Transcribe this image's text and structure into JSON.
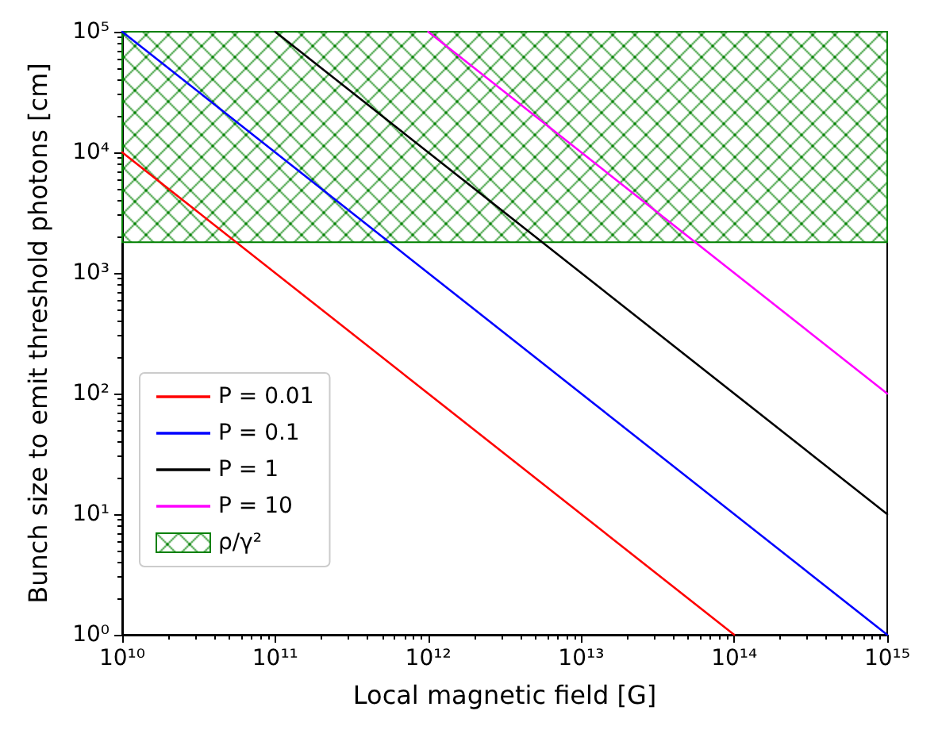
{
  "chart_data": {
    "type": "line",
    "xlabel": "Local magnetic field [G]",
    "ylabel": "Bunch size to emit threshold photons [cm]",
    "log": "xy",
    "grid": false,
    "legend": "bottom left",
    "marker": "none",
    "line_style": "solid",
    "xlim": [
      10000000000,
      1000000000000000
    ],
    "ylim": [
      1,
      100000
    ],
    "xticks": [
      {
        "value": 10000000000,
        "label": "10¹⁰"
      },
      {
        "value": 100000000000,
        "label": "10¹¹"
      },
      {
        "value": 1000000000000,
        "label": "10¹²"
      },
      {
        "value": 10000000000000,
        "label": "10¹³"
      },
      {
        "value": 100000000000000,
        "label": "10¹⁴"
      },
      {
        "value": 1000000000000000,
        "label": "10¹⁵"
      }
    ],
    "yticks": [
      {
        "value": 1,
        "label": "10⁰"
      },
      {
        "value": 10,
        "label": "10¹"
      },
      {
        "value": 100,
        "label": "10²"
      },
      {
        "value": 1000,
        "label": "10³"
      },
      {
        "value": 10000,
        "label": "10⁴"
      },
      {
        "value": 100000,
        "label": "10⁵"
      }
    ],
    "series": [
      {
        "name": "P = 0.01",
        "color": "#ff0000",
        "x": [
          10000000000,
          100000000000000
        ],
        "values": [
          10000,
          1
        ]
      },
      {
        "name": "P = 0.1",
        "color": "#0000ff",
        "x": [
          10000000000,
          1000000000000000
        ],
        "values": [
          100000,
          1
        ]
      },
      {
        "name": "P = 1",
        "color": "#000000",
        "x": [
          100000000000,
          1000000000000000
        ],
        "values": [
          100000,
          10
        ]
      },
      {
        "name": "P = 10",
        "color": "#ff00ff",
        "x": [
          1000000000000,
          1000000000000000
        ],
        "values": [
          100000,
          100
        ]
      }
    ],
    "bands": [
      {
        "axis": "y",
        "from": 1800,
        "to": 100000,
        "label": "ρ/γ²",
        "color": "#008000"
      }
    ]
  }
}
